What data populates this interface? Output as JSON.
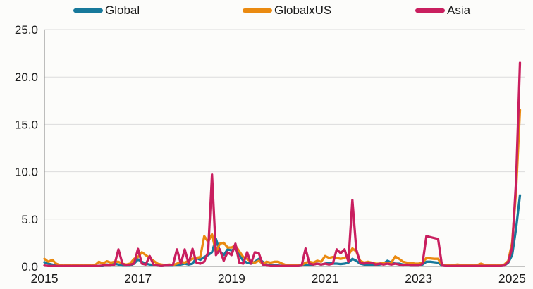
{
  "chart_data": {
    "type": "line",
    "title": "",
    "xlabel": "",
    "ylabel": "",
    "x_start": 2015.0,
    "x_step": "monthly",
    "x_range": [
      2015.0,
      2025.28
    ],
    "ylim": [
      0,
      25
    ],
    "y_ticks": [
      25,
      20,
      15,
      10,
      5,
      0
    ],
    "x_ticks": [
      2015,
      2017,
      2019,
      2021,
      2023,
      2025
    ],
    "grid": "horizontal",
    "legend_position": "top",
    "series": [
      {
        "name": "Global",
        "color": "#17799b",
        "values": [
          0.45,
          0.3,
          0.2,
          0.1,
          0.05,
          0.05,
          0.05,
          0.05,
          0.05,
          0.05,
          0.05,
          0.05,
          0.05,
          0.05,
          0.05,
          0.05,
          0.2,
          0.15,
          0.3,
          0.2,
          0.1,
          0.1,
          0.1,
          0.3,
          0.75,
          0.5,
          0.3,
          0.2,
          0.15,
          0.1,
          0.05,
          0.1,
          0.1,
          0.1,
          0.2,
          0.2,
          0.3,
          0.2,
          0.3,
          0.9,
          0.7,
          1.0,
          1.2,
          1.5,
          2.9,
          1.6,
          1.2,
          1.8,
          1.7,
          1.9,
          1.2,
          0.6,
          0.4,
          0.3,
          0.5,
          0.8,
          0.5,
          0.2,
          0.1,
          0.1,
          0.1,
          0.05,
          0.05,
          0.05,
          0.05,
          0.05,
          0.1,
          0.2,
          0.15,
          0.2,
          0.3,
          0.2,
          0.3,
          0.4,
          0.3,
          0.3,
          0.25,
          0.3,
          0.4,
          0.8,
          0.6,
          0.3,
          0.2,
          0.2,
          0.2,
          0.15,
          0.2,
          0.3,
          0.6,
          0.4,
          0.3,
          0.3,
          0.2,
          0.15,
          0.1,
          0.1,
          0.1,
          0.2,
          0.5,
          0.5,
          0.45,
          0.4,
          0.1,
          0.05,
          0.05,
          0.05,
          0.05,
          0.05,
          0.05,
          0.05,
          0.05,
          0.05,
          0.1,
          0.05,
          0.05,
          0.05,
          0.05,
          0.05,
          0.1,
          0.4,
          1.2,
          4.0,
          7.5
        ]
      },
      {
        "name": "GlobalxUS",
        "color": "#ea8a10",
        "values": [
          0.8,
          0.5,
          0.7,
          0.3,
          0.15,
          0.1,
          0.15,
          0.1,
          0.15,
          0.1,
          0.1,
          0.15,
          0.1,
          0.15,
          0.5,
          0.3,
          0.55,
          0.4,
          0.5,
          0.5,
          0.3,
          0.2,
          0.3,
          0.8,
          1.0,
          1.5,
          1.2,
          0.9,
          0.6,
          0.3,
          0.2,
          0.15,
          0.2,
          0.15,
          0.3,
          0.5,
          0.4,
          0.6,
          0.8,
          0.9,
          1.0,
          3.2,
          2.6,
          3.4,
          1.5,
          2.4,
          2.5,
          2.0,
          2.0,
          2.2,
          1.6,
          1.0,
          0.8,
          0.5,
          0.4,
          0.6,
          0.3,
          0.5,
          0.4,
          0.5,
          0.5,
          0.3,
          0.15,
          0.1,
          0.1,
          0.1,
          0.15,
          0.4,
          0.5,
          0.4,
          0.6,
          0.5,
          1.1,
          0.9,
          1.0,
          0.9,
          0.8,
          0.9,
          1.2,
          1.9,
          1.6,
          0.6,
          0.4,
          0.5,
          0.4,
          0.3,
          0.3,
          0.4,
          0.3,
          0.4,
          1.05,
          0.8,
          0.5,
          0.4,
          0.4,
          0.3,
          0.3,
          0.4,
          0.9,
          0.85,
          0.8,
          0.8,
          0.15,
          0.1,
          0.1,
          0.15,
          0.2,
          0.15,
          0.1,
          0.1,
          0.1,
          0.15,
          0.3,
          0.15,
          0.1,
          0.1,
          0.1,
          0.15,
          0.2,
          0.6,
          2.5,
          8.0,
          16.5
        ]
      },
      {
        "name": "Asia",
        "color": "#c91f5f",
        "values": [
          0.1,
          0.05,
          0.05,
          0.05,
          0.05,
          0.05,
          0.05,
          0.05,
          0.05,
          0.05,
          0.05,
          0.05,
          0.05,
          0.05,
          0.05,
          0.1,
          0.1,
          0.1,
          0.2,
          1.8,
          0.3,
          0.1,
          0.2,
          0.3,
          1.85,
          0.3,
          0.2,
          1.1,
          0.2,
          0.1,
          0.05,
          0.1,
          0.1,
          0.2,
          1.8,
          0.3,
          1.8,
          0.3,
          1.85,
          0.4,
          0.3,
          0.5,
          1.5,
          9.7,
          1.2,
          1.8,
          0.6,
          1.5,
          1.2,
          2.4,
          0.4,
          0.3,
          1.5,
          0.3,
          1.5,
          1.4,
          0.2,
          0.1,
          0.05,
          0.05,
          0.05,
          0.05,
          0.05,
          0.05,
          0.05,
          0.05,
          0.1,
          1.9,
          0.3,
          0.2,
          0.3,
          0.2,
          0.3,
          0.2,
          0.3,
          1.8,
          1.4,
          1.8,
          0.5,
          7.0,
          1.8,
          0.4,
          0.3,
          0.4,
          0.4,
          0.2,
          0.3,
          0.2,
          0.3,
          0.2,
          0.3,
          0.2,
          0.1,
          0.2,
          0.1,
          0.1,
          0.1,
          0.3,
          3.2,
          3.1,
          3.0,
          2.9,
          0.1,
          0.05,
          0.05,
          0.05,
          0.05,
          0.05,
          0.05,
          0.05,
          0.05,
          0.05,
          0.05,
          0.05,
          0.05,
          0.05,
          0.05,
          0.05,
          0.1,
          0.5,
          2.0,
          9.0,
          21.5
        ]
      }
    ],
    "colors": {
      "grid": "#dcdcdc",
      "spine": "#9b9b9b",
      "baseline": "#b0b0b0",
      "text": "#1a1a1a",
      "background": "#fcfcfa"
    }
  }
}
